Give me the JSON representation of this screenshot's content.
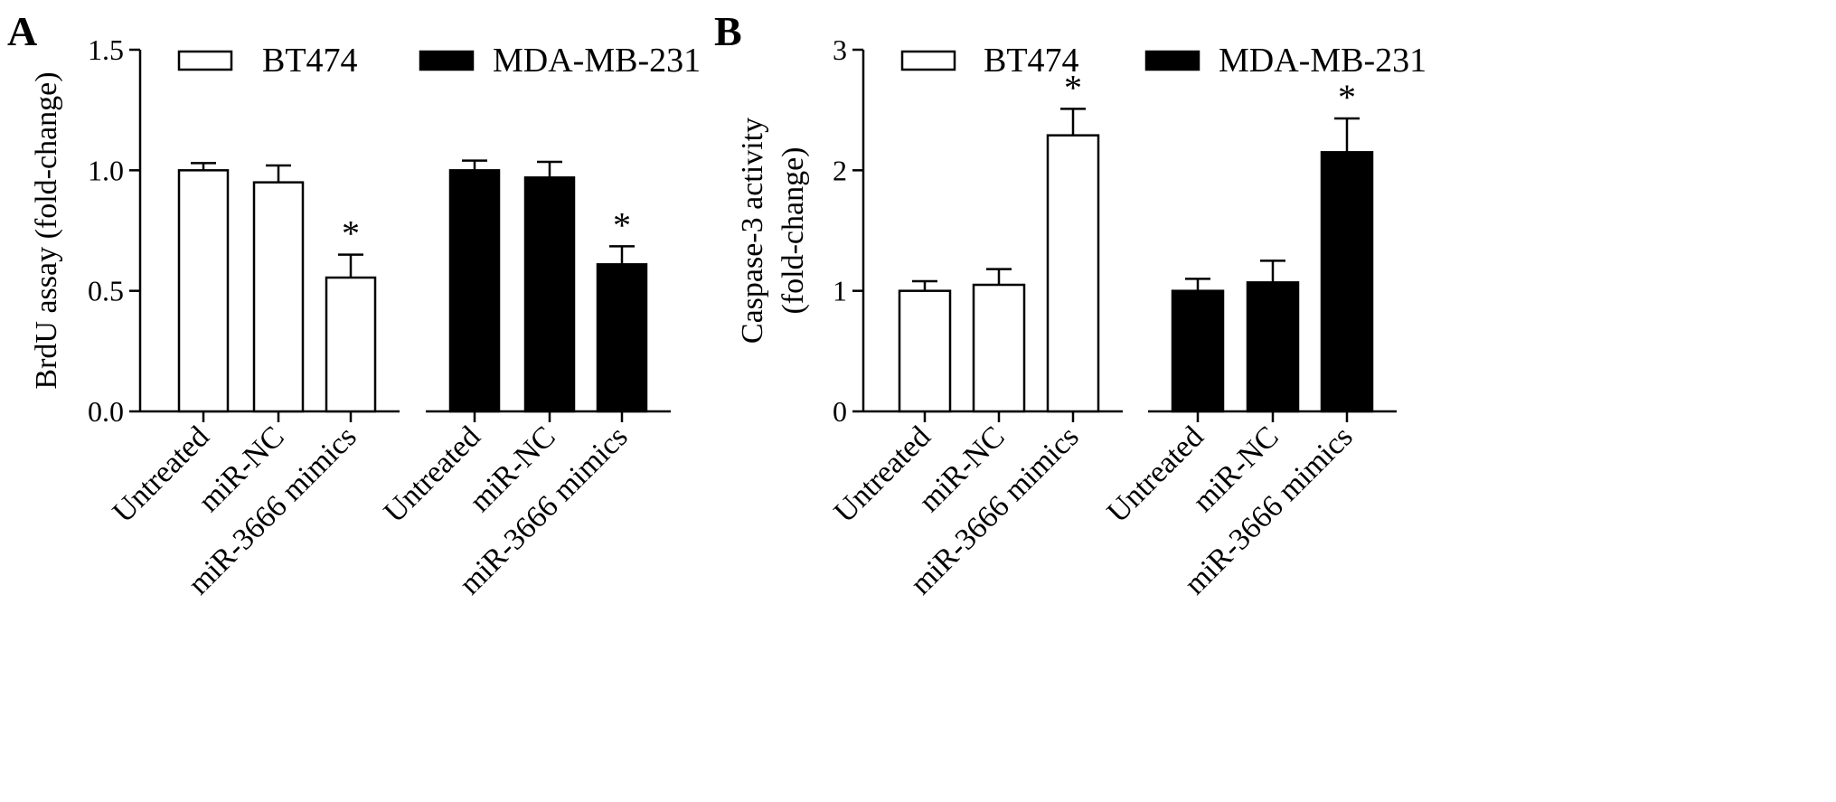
{
  "chart_data": [
    {
      "panel": "A",
      "type": "bar",
      "ylabel": "BrdU assay (fold-change)",
      "ylim": [
        0,
        1.5
      ],
      "yticks": [
        0,
        0.5,
        1.0,
        1.5
      ],
      "ytick_labels": [
        "0.0",
        "0.5",
        "1.0",
        "1.5"
      ],
      "legend_position": "top",
      "categories": [
        "Untreated",
        "miR-NC",
        "miR-3666 mimics"
      ],
      "series": [
        {
          "name": "BT474",
          "fill": "#ffffff",
          "values": [
            1.0,
            0.95,
            0.555
          ],
          "errors": [
            0.03,
            0.07,
            0.095
          ],
          "significant": [
            false,
            false,
            true
          ]
        },
        {
          "name": "MDA-MB-231",
          "fill": "#000000",
          "values": [
            1.0,
            0.97,
            0.61
          ],
          "errors": [
            0.04,
            0.065,
            0.075
          ],
          "significant": [
            false,
            false,
            true
          ]
        }
      ],
      "significance_marker": "*"
    },
    {
      "panel": "B",
      "type": "bar",
      "ylabel": [
        "Caspase-3 activity",
        "(fold-change)"
      ],
      "ylim": [
        0,
        3
      ],
      "yticks": [
        0,
        1,
        2,
        3
      ],
      "ytick_labels": [
        "0",
        "1",
        "2",
        "3"
      ],
      "legend_position": "top",
      "categories": [
        "Untreated",
        "miR-NC",
        "miR-3666 mimics"
      ],
      "series": [
        {
          "name": "BT474",
          "fill": "#ffffff",
          "values": [
            1.0,
            1.05,
            2.29
          ],
          "errors": [
            0.08,
            0.13,
            0.22
          ],
          "significant": [
            false,
            false,
            true
          ]
        },
        {
          "name": "MDA-MB-231",
          "fill": "#000000",
          "values": [
            1.0,
            1.07,
            2.15
          ],
          "errors": [
            0.1,
            0.18,
            0.28
          ],
          "significant": [
            false,
            false,
            true
          ]
        }
      ],
      "significance_marker": "*"
    }
  ]
}
